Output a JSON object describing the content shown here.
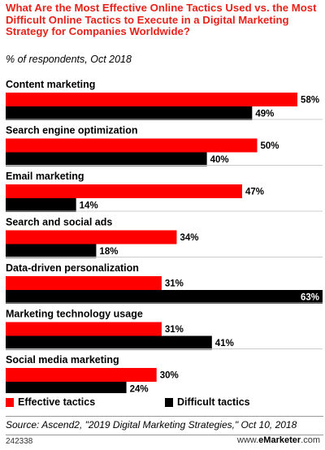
{
  "title": "What Are the Most Effective Online Tactics Used vs. the Most Difficult Online Tactics to Execute in a Digital Marketing Strategy for Companies Worldwide?",
  "subtitle": "% of respondents, Oct 2018",
  "colors": {
    "effective": "#ff0000",
    "difficult": "#000000",
    "title": "#e8221a"
  },
  "chart_data": {
    "type": "bar",
    "orientation": "horizontal",
    "categories": [
      "Content marketing",
      "Search engine optimization",
      "Email marketing",
      "Search and social ads",
      "Data-driven personalization",
      "Marketing technology usage",
      "Social media marketing"
    ],
    "series": [
      {
        "name": "Effective tactics",
        "values": [
          58,
          50,
          47,
          34,
          31,
          31,
          30
        ]
      },
      {
        "name": "Difficult tactics",
        "values": [
          49,
          40,
          14,
          18,
          63,
          41,
          24
        ]
      }
    ],
    "unit": "%",
    "xlim": [
      0,
      63
    ],
    "grid": false,
    "legend_position": "bottom"
  },
  "legend": {
    "effective_label": "Effective tactics",
    "difficult_label": "Difficult tactics"
  },
  "source": "Source: Ascend2, \"2019 Digital Marketing Strategies,\" Oct 10, 2018",
  "footer": {
    "chart_id": "242338",
    "brand_prefix": "www.",
    "brand_name": "eMarketer",
    "brand_suffix": ".com"
  }
}
